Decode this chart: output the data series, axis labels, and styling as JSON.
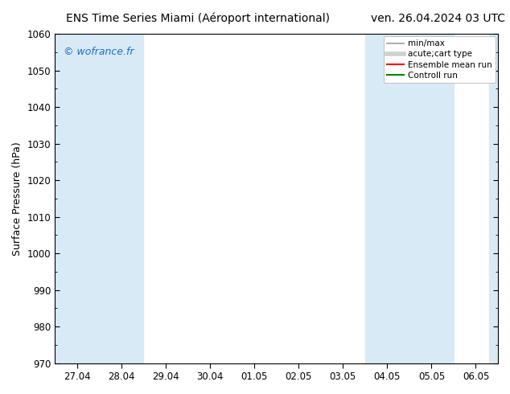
{
  "title_left": "ENS Time Series Miami (Aéroport international)",
  "title_right": "ven. 26.04.2024 03 UTC",
  "ylabel": "Surface Pressure (hPa)",
  "ylim": [
    970,
    1060
  ],
  "yticks": [
    970,
    980,
    990,
    1000,
    1010,
    1020,
    1030,
    1040,
    1050,
    1060
  ],
  "xtick_labels": [
    "27.04",
    "28.04",
    "29.04",
    "30.04",
    "01.05",
    "02.05",
    "03.05",
    "04.05",
    "05.05",
    "06.05"
  ],
  "watermark": "© wofrance.fr",
  "watermark_color": "#1a6fc4",
  "bg_color": "#ffffff",
  "plot_bg_color": "#ffffff",
  "shaded_band_color": "#d9eaf7",
  "legend_entries": [
    {
      "label": "min/max",
      "color": "#b0b0b0",
      "lw": 1.5,
      "style": "solid"
    },
    {
      "label": "acute;cart type",
      "color": "#d0d0d0",
      "lw": 4,
      "style": "solid"
    },
    {
      "label": "Ensemble mean run",
      "color": "#ff0000",
      "lw": 1.5,
      "style": "solid"
    },
    {
      "label": "Controll run",
      "color": "#008000",
      "lw": 1.5,
      "style": "solid"
    }
  ],
  "title_fontsize": 10,
  "axis_fontsize": 9,
  "tick_fontsize": 8.5,
  "legend_fontsize": 7.5
}
